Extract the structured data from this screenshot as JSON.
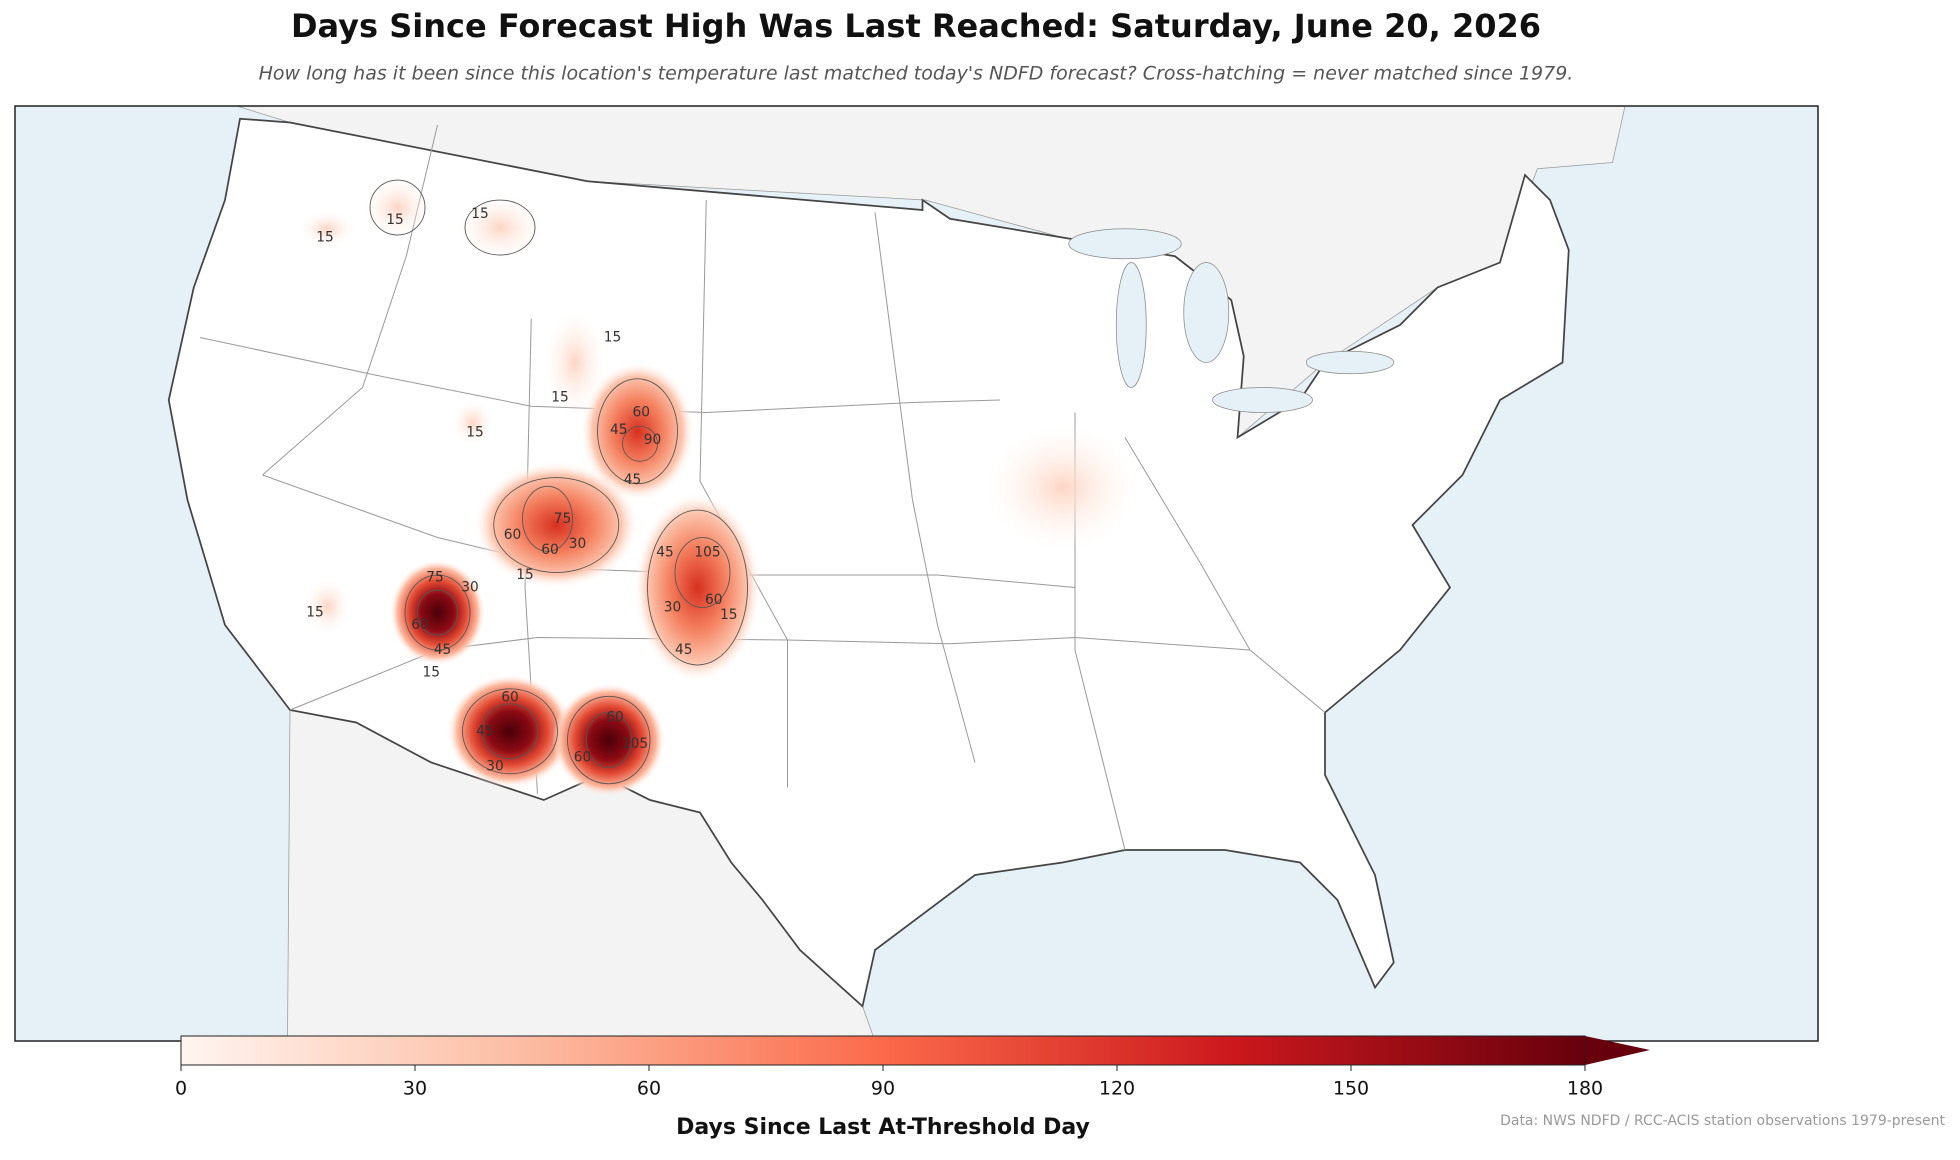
{
  "header": {
    "title": "Days Since Forecast High Was Last Reached: Saturday, June 20, 2026",
    "subtitle": "How long has it been since this location's temperature last matched today's NDFD forecast? Cross-hatching = never matched since 1979."
  },
  "map": {
    "contour_labels": [
      "15",
      "15",
      "15",
      "15",
      "15",
      "15",
      "15",
      "15",
      "15",
      "15",
      "60",
      "90",
      "45",
      "45",
      "60",
      "75",
      "60",
      "30",
      "75",
      "30",
      "60",
      "45",
      "45",
      "30",
      "105",
      "60",
      "45",
      "60",
      "45",
      "30",
      "60",
      "60",
      "105"
    ]
  },
  "colorbar": {
    "label": "Days Since Last At-Threshold Day",
    "range": [
      0,
      180
    ],
    "ticks": [
      0,
      30,
      60,
      90,
      120,
      150,
      180
    ]
  },
  "source": "Data: NWS NDFD / RCC-ACIS station observations 1979-present"
}
